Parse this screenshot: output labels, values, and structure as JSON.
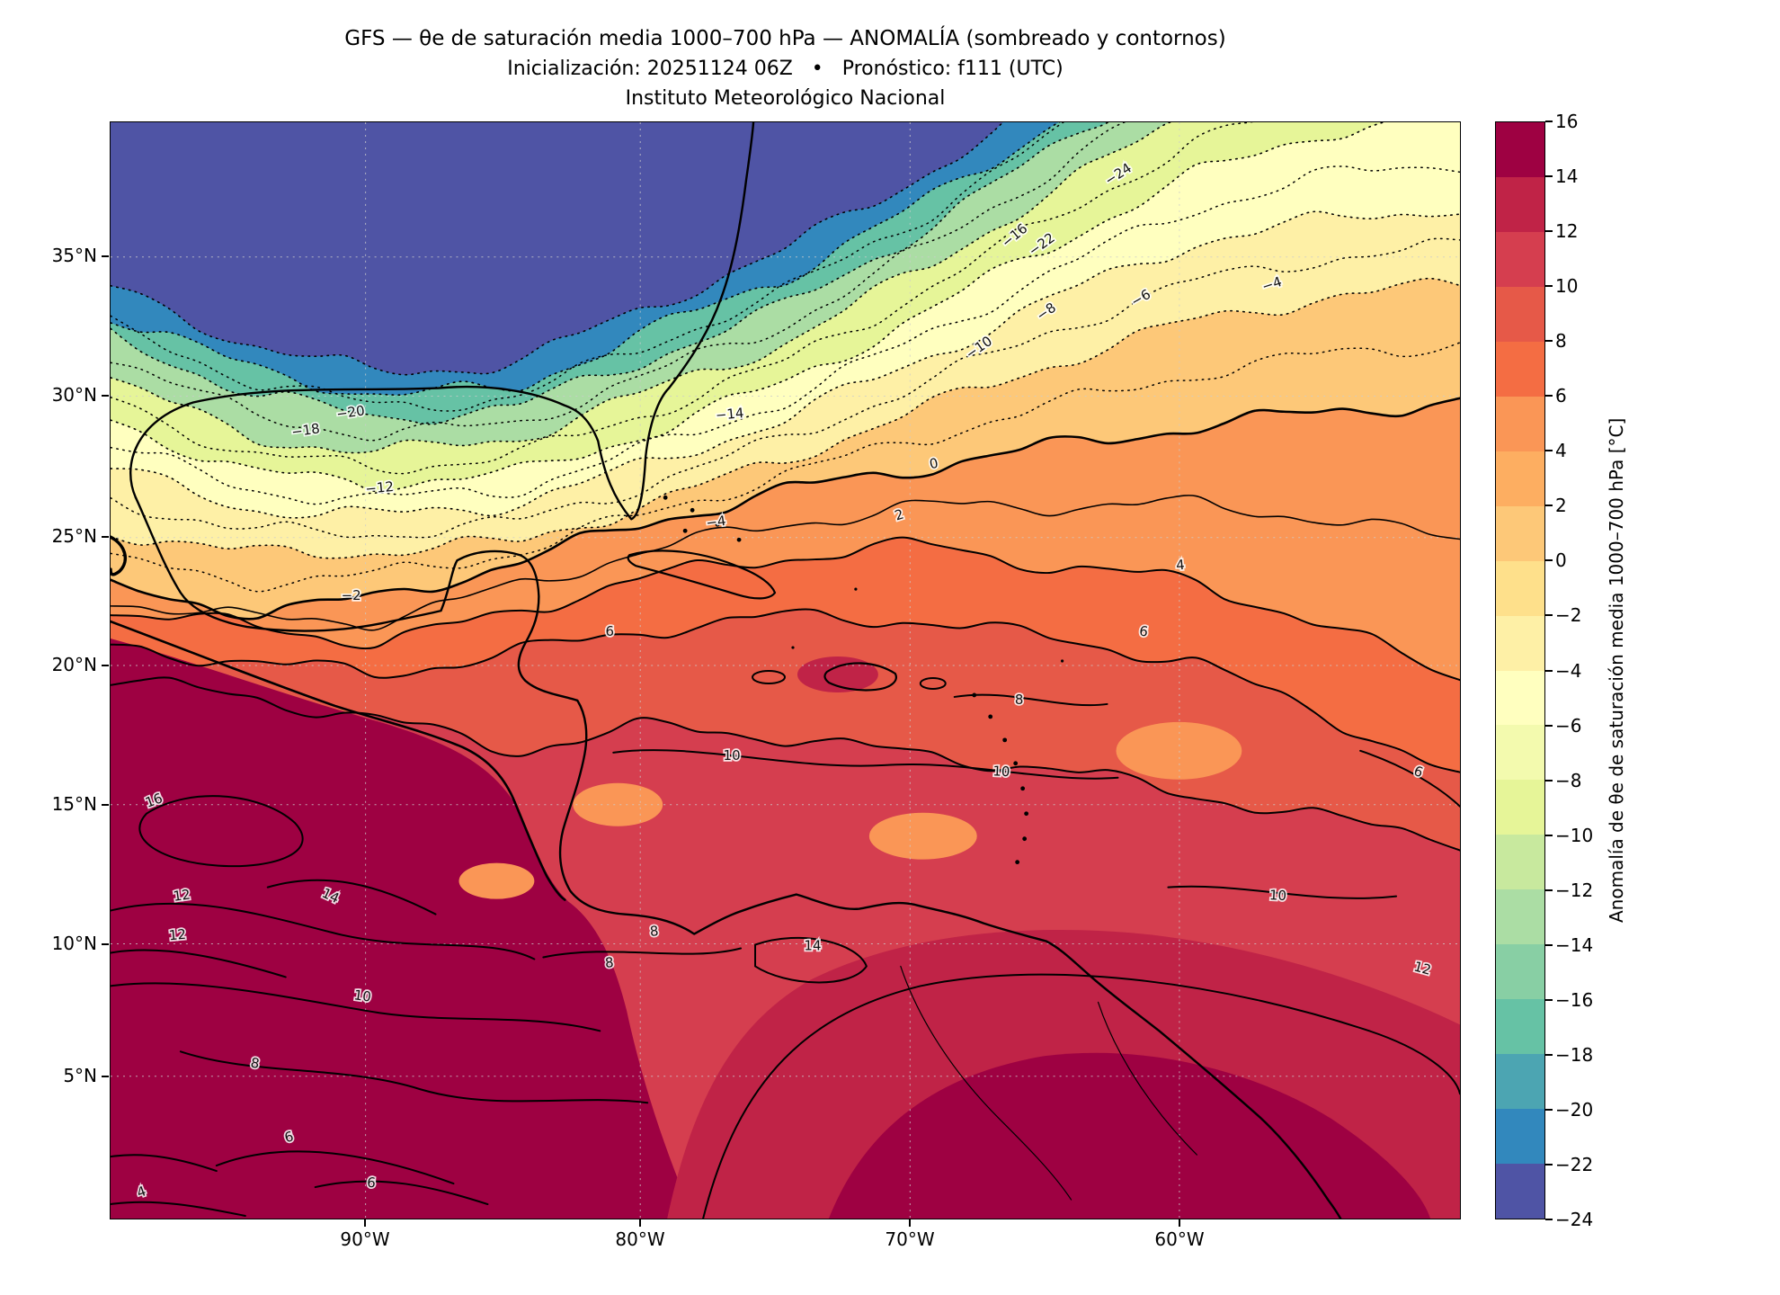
{
  "header": {
    "title_line1": "GFS — θe de saturación media 1000–700 hPa — ANOMALÍA (sombreado y contornos)",
    "title_line2": "Inicialización: 20251124 06Z   •   Pronóstico: f111 (UTC)",
    "title_line3": "Instituto Meteorológico Nacional"
  },
  "axes": {
    "y_ticks": [
      "35°N",
      "30°N",
      "25°N",
      "20°N",
      "15°N",
      "10°N",
      "5°N"
    ],
    "x_ticks": [
      "90°W",
      "80°W",
      "70°W",
      "60°W"
    ]
  },
  "colorbar": {
    "label": "Anomalía de θe de saturación media 1000–700 hPa [°C]",
    "ticks": [
      "16",
      "14",
      "12",
      "10",
      "8",
      "6",
      "4",
      "2",
      "0",
      "−2",
      "−4",
      "−6",
      "−8",
      "−10",
      "−12",
      "−14",
      "−16",
      "−18",
      "−20",
      "−22",
      "−24"
    ],
    "colors_top_to_bottom": [
      "#9e0142",
      "#c02347",
      "#d53e4f",
      "#e65948",
      "#f46d43",
      "#fa9656",
      "#fdae61",
      "#fdc878",
      "#fee08b",
      "#fef0a6",
      "#ffffbf",
      "#f3faae",
      "#e6f598",
      "#c8e99e",
      "#abdda4",
      "#88cfa4",
      "#66c2a5",
      "#4ca5b2",
      "#3288bd",
      "#4f54a5"
    ]
  },
  "chart_data": {
    "type": "heatmap",
    "title": "GFS — θe de saturación media 1000–700 hPa — ANOMALÍA (sombreado y contornos)",
    "model": "GFS",
    "init": "20251124 06Z",
    "forecast": "f111 (UTC)",
    "institution": "Instituto Meteorológico Nacional",
    "variable": "Anomalía de θe de saturación media 1000–700 hPa",
    "units": "°C",
    "colorbar_range": [
      -24,
      16
    ],
    "contour_interval": 2,
    "contour_levels": [
      -24,
      -22,
      -20,
      -18,
      -16,
      -14,
      -12,
      -10,
      -8,
      -6,
      -4,
      -2,
      0,
      2,
      4,
      6,
      8,
      10,
      12,
      14,
      16
    ],
    "negative_contours_dotted": true,
    "x_axis_ticks": [
      "90°W",
      "80°W",
      "70°W",
      "60°W"
    ],
    "y_axis_ticks": [
      "35°N",
      "30°N",
      "25°N",
      "20°N",
      "15°N",
      "10°N",
      "5°N"
    ],
    "approx_lon_range_deg_w": [
      100,
      48
    ],
    "approx_lat_range_deg_n": [
      0,
      40
    ],
    "approx_grid": {
      "lats_deg_n": [
        35,
        25,
        15,
        5
      ],
      "lons_deg_w": [
        95,
        85,
        75,
        65,
        55
      ],
      "anomaly_values_c": [
        [
          -26,
          -26,
          -26,
          -20,
          -8
        ],
        [
          -4,
          -4,
          0,
          2,
          2
        ],
        [
          14,
          8,
          10,
          10,
          6
        ],
        [
          6,
          10,
          14,
          13,
          12
        ]
      ]
    },
    "contour_label_values": [
      "−24",
      "−22",
      "−16",
      "−10",
      "−8",
      "−6",
      "−4",
      "−14",
      "−18",
      "−20",
      "−12",
      "−2",
      "−4",
      "0",
      "2",
      "4",
      "6",
      "6",
      "8",
      "10",
      "10",
      "6",
      "16",
      "12",
      "14",
      "10",
      "12",
      "10",
      "8",
      "8",
      "14",
      "6",
      "4",
      "6",
      "8",
      "12"
    ]
  }
}
